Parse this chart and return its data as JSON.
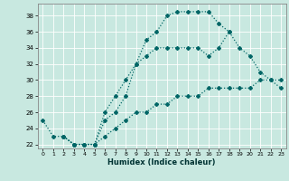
{
  "title": "",
  "xlabel": "Humidex (Indice chaleur)",
  "ylabel": "",
  "bg_color": "#c8e8e0",
  "grid_color": "#ffffff",
  "line_color": "#006666",
  "xlim": [
    -0.5,
    23.5
  ],
  "ylim": [
    21.5,
    39.5
  ],
  "xticks": [
    0,
    1,
    2,
    3,
    4,
    5,
    6,
    7,
    8,
    9,
    10,
    11,
    12,
    13,
    14,
    15,
    16,
    17,
    18,
    19,
    20,
    21,
    22,
    23
  ],
  "yticks": [
    22,
    24,
    26,
    28,
    30,
    32,
    34,
    36,
    38
  ],
  "line1_x": [
    0,
    1,
    2,
    3,
    4,
    5,
    6,
    7,
    8,
    9,
    10,
    11,
    12,
    13,
    14,
    15,
    16,
    17,
    18
  ],
  "line1_y": [
    25,
    23,
    23,
    22,
    22,
    22,
    26,
    28,
    30,
    32,
    35,
    36,
    38,
    38.5,
    38.5,
    38.5,
    38.5,
    37,
    36
  ],
  "line2_x": [
    2,
    3,
    4,
    5,
    6,
    7,
    8,
    9,
    10,
    11,
    12,
    13,
    14,
    15,
    16,
    17,
    18,
    19,
    20,
    21,
    22,
    23
  ],
  "line2_y": [
    23,
    22,
    22,
    22,
    25,
    26,
    28,
    32,
    33,
    34,
    34,
    34,
    34,
    34,
    33,
    34,
    36,
    34,
    33,
    31,
    30,
    29
  ],
  "line3_x": [
    2,
    3,
    4,
    5,
    6,
    7,
    8,
    9,
    10,
    11,
    12,
    13,
    14,
    15,
    16,
    17,
    18,
    19,
    20,
    21,
    22,
    23
  ],
  "line3_y": [
    23,
    22,
    22,
    22,
    23,
    24,
    25,
    26,
    26,
    27,
    27,
    28,
    28,
    28,
    29,
    29,
    29,
    29,
    29,
    30,
    30,
    30
  ]
}
